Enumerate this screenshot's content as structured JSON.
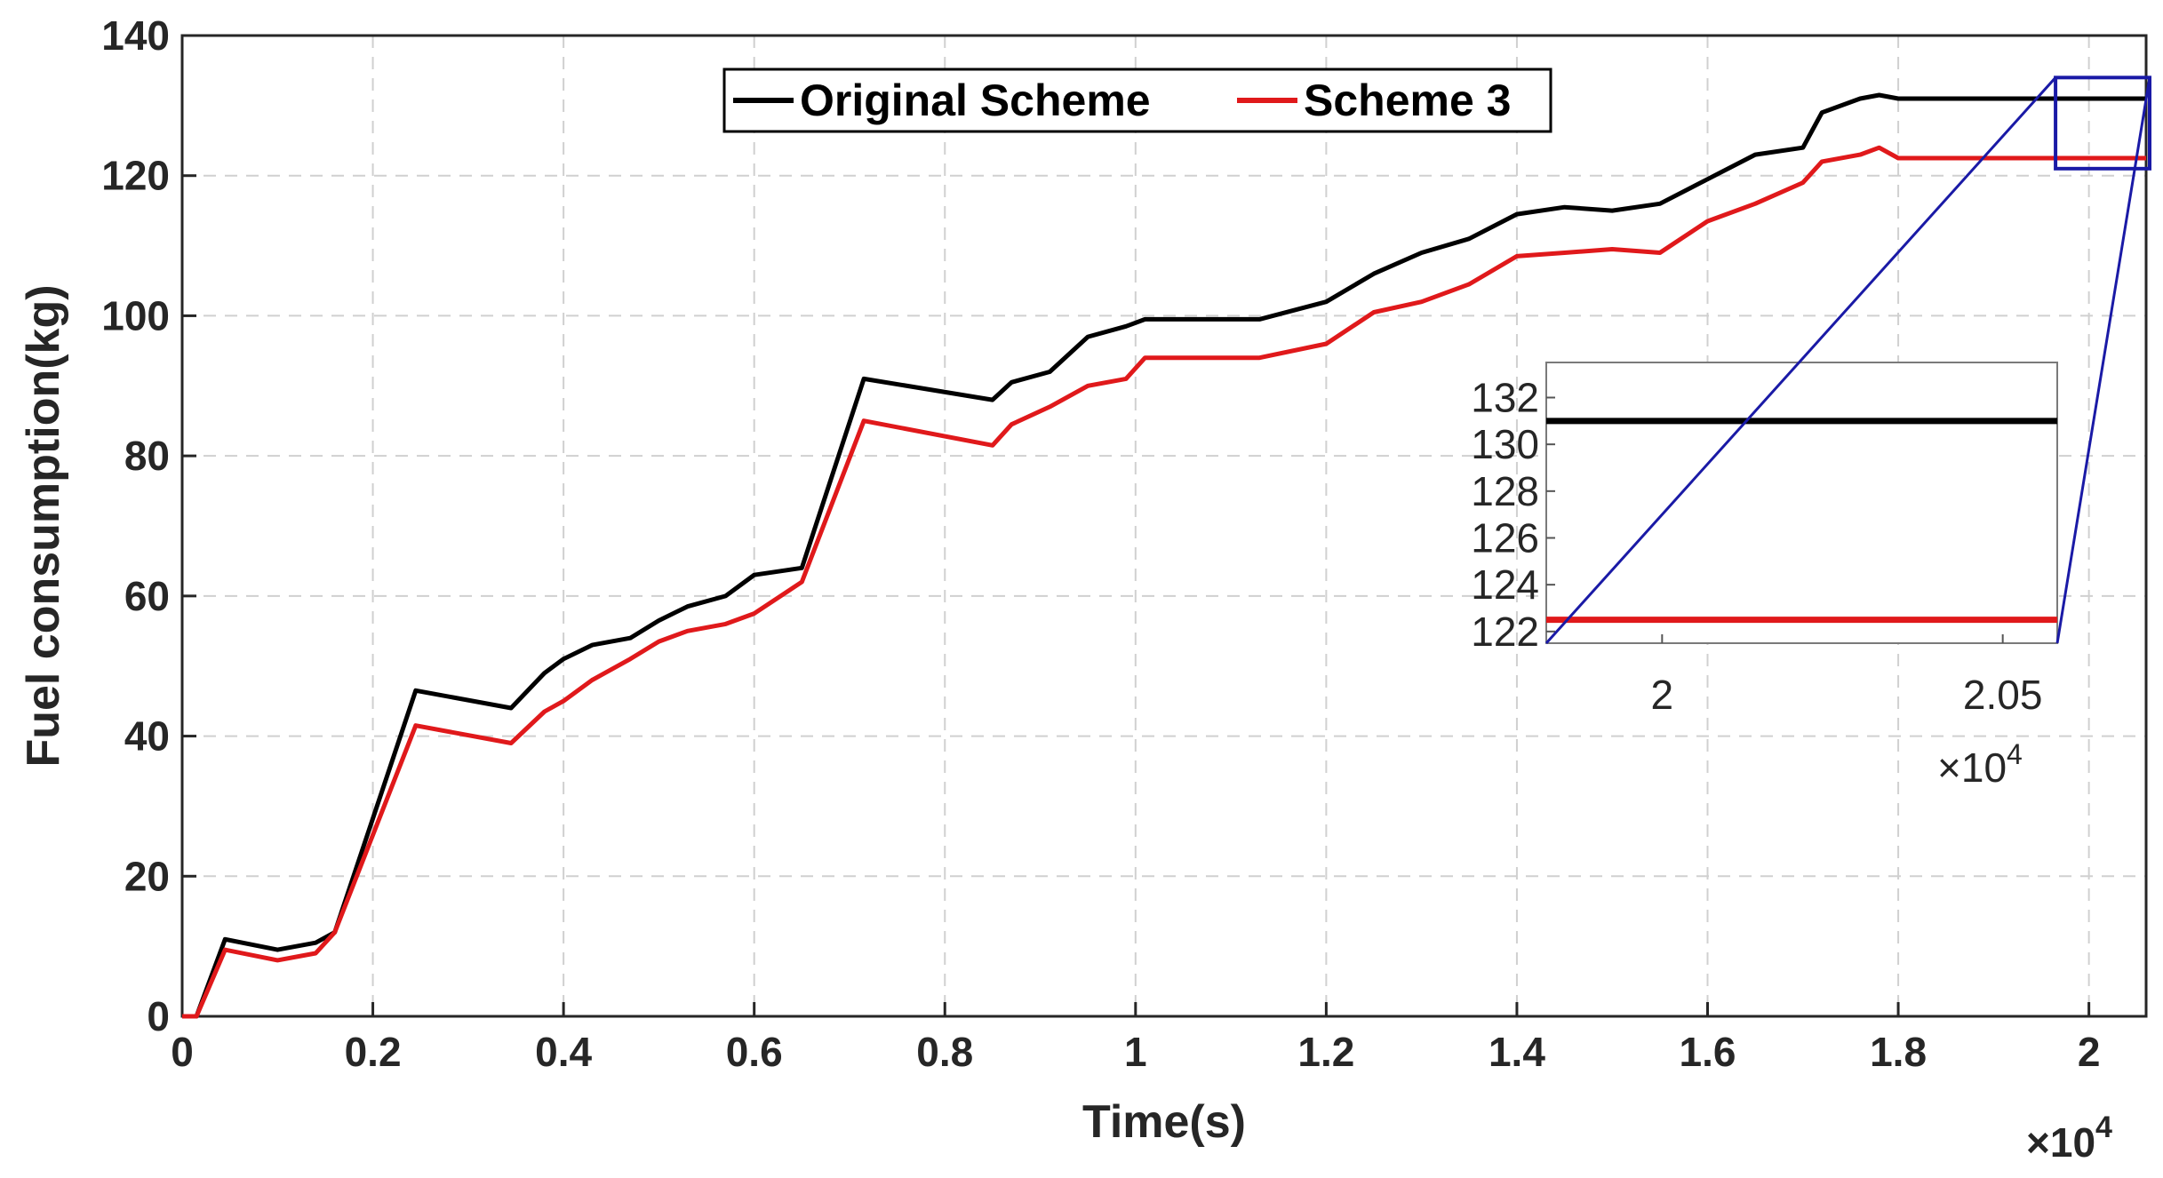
{
  "chart_data": {
    "type": "line",
    "xlabel": "Time(s)",
    "ylabel": "Fuel consumption(kg)",
    "x_multiplier": "×10",
    "x_multiplier_exp": "4",
    "xlim": [
      0,
      2.06
    ],
    "ylim": [
      0,
      140
    ],
    "xticks": [
      0,
      0.2,
      0.4,
      0.6,
      0.8,
      1,
      1.2,
      1.4,
      1.6,
      1.8,
      2
    ],
    "xtick_labels": [
      "0",
      "0.2",
      "0.4",
      "0.6",
      "0.8",
      "1",
      "1.2",
      "1.4",
      "1.6",
      "1.8",
      "2"
    ],
    "yticks": [
      0,
      20,
      40,
      60,
      80,
      100,
      120,
      140
    ],
    "ytick_labels": [
      "0",
      "20",
      "40",
      "60",
      "80",
      "100",
      "120",
      "140"
    ],
    "grid": true,
    "legend_position": "top",
    "series": [
      {
        "name": "Original Scheme",
        "color": "#000000",
        "x": [
          0,
          0.015,
          0.045,
          0.1,
          0.14,
          0.16,
          0.245,
          0.345,
          0.38,
          0.4,
          0.43,
          0.47,
          0.5,
          0.53,
          0.57,
          0.6,
          0.65,
          0.715,
          0.85,
          0.87,
          0.91,
          0.95,
          0.99,
          1.01,
          1.13,
          1.2,
          1.25,
          1.3,
          1.35,
          1.4,
          1.45,
          1.5,
          1.55,
          1.6,
          1.65,
          1.7,
          1.72,
          1.76,
          1.78,
          1.8,
          2.06
        ],
        "y": [
          0,
          0,
          11,
          9.5,
          10.5,
          12,
          46.5,
          44,
          49,
          51,
          53,
          54,
          56.5,
          58.5,
          60,
          63,
          64,
          91,
          88,
          90.5,
          92,
          97,
          98.5,
          99.5,
          99.5,
          102,
          106,
          109,
          111,
          114.5,
          115.5,
          115,
          116,
          119.5,
          123,
          124,
          129,
          131,
          131.5,
          131,
          131
        ]
      },
      {
        "name": "Scheme 3",
        "color": "#e0191b",
        "x": [
          0,
          0.015,
          0.045,
          0.1,
          0.14,
          0.16,
          0.245,
          0.345,
          0.38,
          0.4,
          0.43,
          0.47,
          0.5,
          0.53,
          0.57,
          0.6,
          0.65,
          0.715,
          0.85,
          0.87,
          0.91,
          0.95,
          0.99,
          1.01,
          1.13,
          1.2,
          1.25,
          1.3,
          1.35,
          1.4,
          1.45,
          1.5,
          1.55,
          1.6,
          1.65,
          1.7,
          1.72,
          1.76,
          1.78,
          1.8,
          2.06
        ],
        "y": [
          0,
          0,
          9.5,
          8,
          9,
          12,
          41.5,
          39,
          43.5,
          45,
          48,
          51,
          53.5,
          55,
          56,
          57.5,
          62,
          85,
          81.5,
          84.5,
          87,
          90,
          91,
          94,
          94,
          96,
          100.5,
          102,
          104.5,
          108.5,
          109,
          109.5,
          109,
          113.5,
          116,
          119,
          122,
          123,
          124,
          122.5,
          122.5
        ]
      }
    ],
    "inset": {
      "xlim": [
        1.983,
        2.058
      ],
      "ylim": [
        121.5,
        133.5
      ],
      "xticks": [
        2,
        2.05
      ],
      "xtick_labels": [
        "2",
        "2.05"
      ],
      "yticks": [
        122,
        124,
        126,
        128,
        130,
        132
      ],
      "ytick_labels": [
        "122",
        "124",
        "126",
        "128",
        "130",
        "132"
      ],
      "x_multiplier": "×10",
      "x_multiplier_exp": "4",
      "zoom_region": {
        "x": [
          1.965,
          2.06
        ],
        "y": [
          121,
          134
        ]
      },
      "series_levels": [
        131,
        122.5
      ]
    }
  }
}
